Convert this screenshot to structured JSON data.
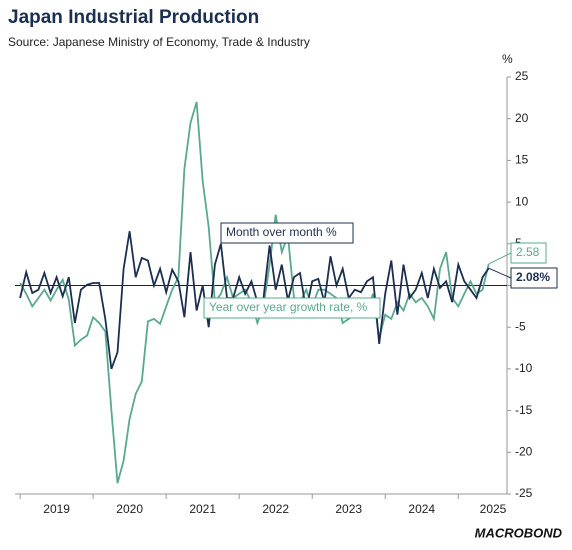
{
  "chart_data": {
    "type": "line",
    "title": "Japan Industrial Production",
    "subtitle": "Source: Japanese Ministry of Economy, Trade & Industry",
    "ylabel": "%",
    "logo": "MACROBOND",
    "x": [
      2019,
      2019.083,
      2019.167,
      2019.25,
      2019.333,
      2019.417,
      2019.5,
      2019.583,
      2019.667,
      2019.75,
      2019.833,
      2019.917,
      2020,
      2020.083,
      2020.167,
      2020.25,
      2020.333,
      2020.417,
      2020.5,
      2020.583,
      2020.667,
      2020.75,
      2020.833,
      2020.917,
      2021,
      2021.083,
      2021.167,
      2021.25,
      2021.333,
      2021.417,
      2021.5,
      2021.583,
      2021.667,
      2021.75,
      2021.833,
      2021.917,
      2022,
      2022.083,
      2022.167,
      2022.25,
      2022.333,
      2022.417,
      2022.5,
      2022.583,
      2022.667,
      2022.75,
      2022.833,
      2022.917,
      2023,
      2023.083,
      2023.167,
      2023.25,
      2023.333,
      2023.417,
      2023.5,
      2023.583,
      2023.667,
      2023.75,
      2023.833,
      2023.917,
      2024,
      2024.083,
      2024.167,
      2024.25,
      2024.333,
      2024.417,
      2024.5,
      2024.583,
      2024.667,
      2024.75,
      2024.833,
      2024.917,
      2025,
      2025.083,
      2025.167,
      2025.25,
      2025.333,
      2025.417
    ],
    "series": [
      {
        "name": "Month over month %",
        "color": "#1c2f4f",
        "values": [
          -1.5,
          1.6,
          -0.9,
          -0.5,
          1.5,
          -0.9,
          1.0,
          -1.3,
          1.0,
          -4.5,
          -0.5,
          0.1,
          0.3,
          0.3,
          -4.0,
          -10.0,
          -8.0,
          2.0,
          6.5,
          1.0,
          3.3,
          3.0,
          0.0,
          2.0,
          -0.8,
          1.9,
          0.5,
          -3.8,
          4.0,
          -3.0,
          0.0,
          -5.0,
          2.5,
          5.0,
          -1.5,
          -1.5,
          1.0,
          -1.0,
          0.5,
          -2.0,
          -1.5,
          4.8,
          -0.5,
          2.5,
          -1.8,
          1.0,
          1.5,
          -3.0,
          0.5,
          0.8,
          -2.0,
          3.5,
          0.0,
          2.0,
          -1.5,
          -0.5,
          -0.8,
          0.5,
          1.0,
          -7.0,
          -1.0,
          3.0,
          -3.5,
          2.5,
          -1.5,
          -0.5,
          1.5,
          -1.5,
          2.0,
          -0.3,
          0.5,
          -2.0,
          2.5,
          0.5,
          -0.5,
          -1.5,
          1.0,
          2.08
        ],
        "value_labels": [
          null,
          null,
          null,
          null,
          null,
          null,
          null,
          null,
          null,
          null,
          null,
          null,
          null,
          null,
          null,
          null,
          null,
          null,
          null,
          null,
          null,
          null,
          null,
          null,
          null,
          null,
          null,
          null,
          null,
          null,
          null,
          null,
          null,
          null,
          null,
          null,
          null,
          null,
          null,
          null,
          null,
          null,
          null,
          null,
          null,
          null,
          null,
          null,
          null,
          null,
          null,
          null,
          null,
          null,
          null,
          null,
          null,
          null,
          null,
          null,
          null,
          null,
          null,
          null,
          null,
          null,
          null,
          null,
          null,
          null,
          null,
          null,
          null,
          null,
          null,
          null,
          null,
          "2.08%"
        ]
      },
      {
        "name": "Year over year growth rate, %",
        "color": "#5aa88f",
        "values": [
          0.3,
          -1.0,
          -2.5,
          -1.5,
          -0.5,
          -1.8,
          -0.5,
          0.7,
          -1.7,
          -7.2,
          -6.5,
          -6.0,
          -3.8,
          -4.5,
          -5.5,
          -15.0,
          -23.7,
          -21.0,
          -16.0,
          -13.0,
          -11.5,
          -4.3,
          -4.0,
          -4.6,
          -2.5,
          -0.5,
          1.0,
          14.0,
          19.5,
          22.0,
          12.5,
          7.0,
          -2.0,
          -1.0,
          1.0,
          -1.5,
          -1.0,
          -0.5,
          -2.0,
          -4.5,
          -2.5,
          2.5,
          8.5,
          4.0,
          6.0,
          -1.5,
          -2.0,
          -0.5,
          -2.5,
          -0.5,
          -0.5,
          -1.0,
          -1.5,
          -4.5,
          -4.0,
          -3.5,
          -2.0,
          -3.0,
          -1.0,
          -6.3,
          -3.5,
          -4.0,
          -2.0,
          -3.0,
          -1.0,
          -2.0,
          -1.5,
          -2.5,
          -4.0,
          2.0,
          4.0,
          -1.5,
          -2.5,
          -1.0,
          0.5,
          -1.0,
          -0.5,
          2.58
        ]
      }
    ],
    "xlim": [
      2018.93,
      2025.64
    ],
    "xticks": [
      {
        "value": 2019,
        "label": "2019"
      },
      {
        "value": 2020,
        "label": "2020"
      },
      {
        "value": 2021,
        "label": "2021"
      },
      {
        "value": 2022,
        "label": "2022"
      },
      {
        "value": 2023,
        "label": "2023"
      },
      {
        "value": 2024,
        "label": "2024"
      },
      {
        "value": 2025,
        "label": "2025"
      }
    ],
    "ylim": [
      -25,
      25
    ],
    "yticks": [
      -25,
      -20,
      -15,
      -10,
      -5,
      0,
      5,
      10,
      15,
      20,
      25
    ]
  }
}
